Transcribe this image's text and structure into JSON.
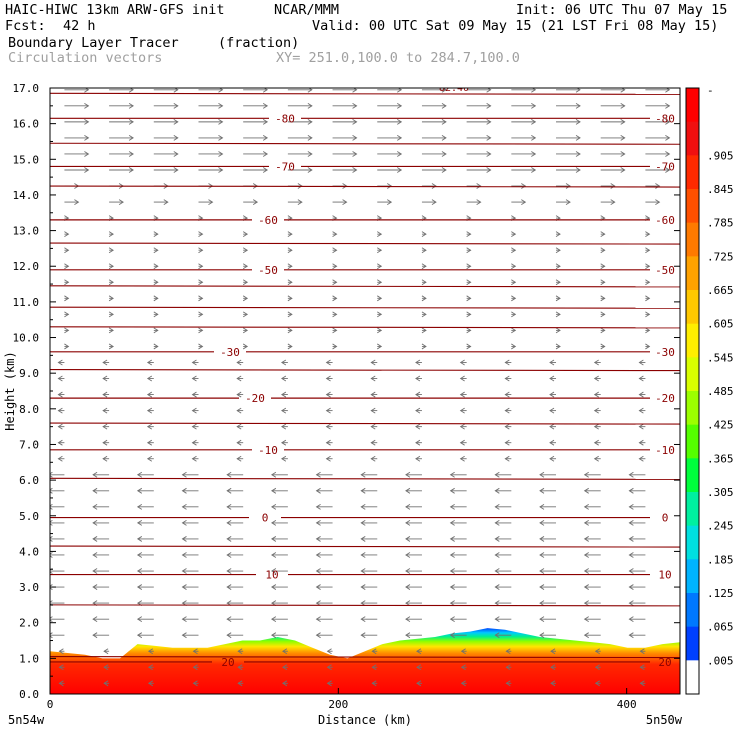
{
  "header": {
    "model": "HAIC-HIWC 13km ARW-GFS init",
    "org": "NCAR/MMM",
    "init": "Init: 06 UTC Thu 07 May 15",
    "fcst_label": "Fcst:",
    "fcst_value": "42 h",
    "valid": "Valid: 00 UTC Sat 09 May 15 (21 LST Fri 08 May 15)",
    "field_name": "Boundary Layer Tracer",
    "field_units": "(fraction)",
    "vectors_label": "Circulation vectors",
    "xy_label": "XY= 251.0,100.0 to 284.7,100.0"
  },
  "chart_data": {
    "type": "heatmap",
    "subtype": "vertical cross-section",
    "ylabel": "Height (km)",
    "xlabel": "Distance (km)",
    "ylim": [
      0,
      17
    ],
    "xlim": [
      0,
      437
    ],
    "y_ticks": [
      "0.0",
      "1.0",
      "2.0",
      "3.0",
      "4.0",
      "5.0",
      "6.0",
      "7.0",
      "8.0",
      "9.0",
      "10.0",
      "11.0",
      "12.0",
      "13.0",
      "14.0",
      "15.0",
      "16.0",
      "17.0"
    ],
    "x_ticks": [
      0,
      200,
      400
    ],
    "x_tick_labels": [
      "0",
      "200",
      "400"
    ],
    "left_endpoint_label": "5n54w",
    "right_endpoint_label": "5n50w",
    "colorbar_labels": [
      "-",
      ".905",
      ".845",
      ".785",
      ".725",
      ".665",
      ".605",
      ".545",
      ".485",
      ".425",
      ".365",
      ".305",
      ".245",
      ".185",
      ".125",
      ".065",
      ".005"
    ],
    "colorbar_colors": [
      "#ff0000",
      "#f01010",
      "#ff2a00",
      "#ff5000",
      "#ff7a00",
      "#ffa200",
      "#ffc800",
      "#ffee00",
      "#d9ff00",
      "#9cff00",
      "#55ff00",
      "#00ff3c",
      "#00f0a0",
      "#00e0e0",
      "#00b4ff",
      "#0078ff",
      "#0040ff",
      "#ffffff"
    ],
    "temperature_contours": [
      {
        "label": "-80",
        "y": 16.15
      },
      {
        "label": "-70",
        "y": 14.8
      },
      {
        "label": "-60",
        "y": 13.3
      },
      {
        "label": "-50",
        "y": 11.9
      },
      {
        "label": "-30",
        "y": 9.6
      },
      {
        "label": "-20",
        "y": 8.3
      },
      {
        "label": "-10",
        "y": 6.85
      },
      {
        "label": "0",
        "y": 4.95
      },
      {
        "label": "10",
        "y": 3.35
      },
      {
        "label": "20",
        "y": 0.9
      }
    ],
    "right_contour_labels": [
      "-80",
      "-70",
      "-60",
      "-50",
      "-30",
      "-20",
      "-10",
      "0",
      "10",
      "20"
    ],
    "top_partial_label": "-82.40",
    "unlabeled_contours_y": [
      16.85,
      15.45,
      14.25,
      12.65,
      11.45,
      10.85,
      10.3,
      9.1,
      7.6,
      6.05,
      4.15,
      2.5,
      1.05
    ],
    "colors": {
      "contour": "#8b0000",
      "vectors": "#707070",
      "axis": "#000000"
    },
    "tracer_top_km": [
      1.2,
      1.15,
      1.1,
      1.0,
      1.0,
      1.4,
      1.35,
      1.3,
      1.3,
      1.3,
      1.4,
      1.5,
      1.5,
      1.6,
      1.5,
      1.3,
      1.1,
      1.0,
      1.2,
      1.4,
      1.5,
      1.55,
      1.6,
      1.7,
      1.75,
      1.85,
      1.8,
      1.7,
      1.6,
      1.55,
      1.5,
      1.45,
      1.4,
      1.3,
      1.3,
      1.4,
      1.45
    ]
  }
}
